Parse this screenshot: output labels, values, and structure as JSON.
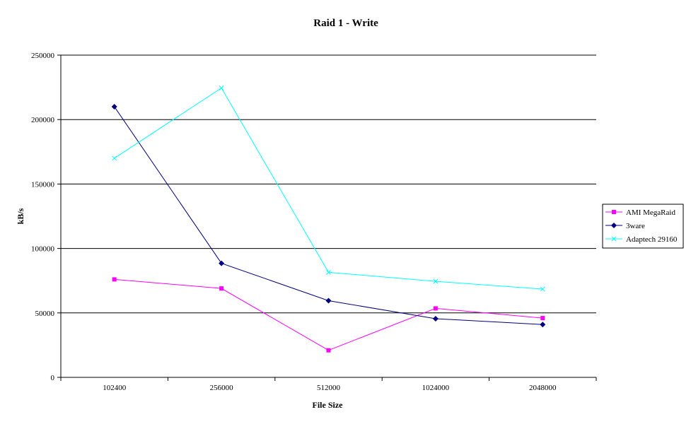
{
  "chart_data": {
    "type": "line",
    "title": "Raid 1 - Write",
    "xlabel": "File Size",
    "ylabel": "kB/s",
    "categories": [
      "102400",
      "256000",
      "512000",
      "1024000",
      "2048000"
    ],
    "y_ticks": [
      "0",
      "50000",
      "100000",
      "150000",
      "200000",
      "250000"
    ],
    "ylim": [
      0,
      250000
    ],
    "grid": true,
    "legend_position": "right",
    "series": [
      {
        "name": "AMI MegaRaid",
        "color": "#ff00ff",
        "marker": "square",
        "values": [
          76000,
          69000,
          21000,
          53500,
          46000
        ]
      },
      {
        "name": "3ware",
        "color": "#000080",
        "marker": "diamond",
        "values": [
          210000,
          88500,
          59500,
          45500,
          41000
        ]
      },
      {
        "name": "Adaptech 29160",
        "color": "#00ffff",
        "marker": "x",
        "values": [
          170000,
          224500,
          81500,
          74500,
          68500
        ]
      }
    ]
  }
}
